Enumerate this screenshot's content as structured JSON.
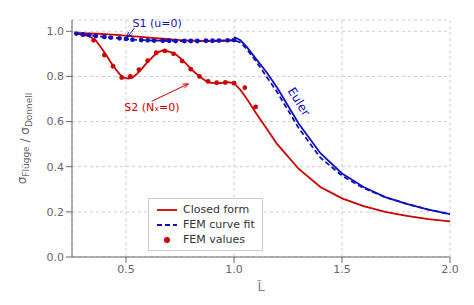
{
  "chart_data": {
    "type": "line",
    "x_label": "L̃",
    "y_label": "σFlügge / σDonnell",
    "xlim": [
      0.25,
      2.0
    ],
    "ylim": [
      0.0,
      1.05
    ],
    "xticks": [
      0.5,
      {
        "value": 1.0,
        "label": "1.0"
      },
      1.5,
      {
        "value": 2.0,
        "label": "2.0"
      }
    ],
    "yticks": [
      {
        "value": 0.0,
        "label": "0.0"
      },
      0.2,
      0.4,
      0.6,
      0.8,
      {
        "value": 1.0,
        "label": "1.0"
      }
    ],
    "grid": true,
    "legend": "lower left",
    "series": [
      {
        "name": "Closed form",
        "color": "#cc0000",
        "line_style": "solid",
        "x": [
          0.27,
          0.32,
          0.37,
          0.42,
          0.47,
          0.52,
          0.57,
          0.62,
          0.67,
          0.72,
          0.77,
          0.82,
          0.87,
          0.92,
          0.97,
          1.0
        ],
        "values": [
          0.993,
          0.991,
          0.989,
          0.986,
          0.983,
          0.979,
          0.975,
          0.971,
          0.967,
          0.963,
          0.96,
          0.958,
          0.957,
          0.957,
          0.958,
          0.96
        ]
      },
      {
        "name": "Closed form",
        "color": "#cc0000",
        "line_style": "solid",
        "x": [
          0.27,
          0.3,
          0.33,
          0.36,
          0.39,
          0.41,
          0.43,
          0.45,
          0.47,
          0.49,
          0.51,
          0.53,
          0.55,
          0.57,
          0.59,
          0.61,
          0.63,
          0.65,
          0.67,
          0.69,
          0.71,
          0.73,
          0.75,
          0.77,
          0.79,
          0.81,
          0.83,
          0.85,
          0.87,
          0.89,
          0.91,
          0.93,
          0.95,
          0.97,
          1.0,
          1.03,
          1.06,
          1.1,
          1.15,
          1.2,
          1.3,
          1.4,
          1.5,
          1.6,
          1.7,
          1.8,
          1.9,
          2.0
        ],
        "values": [
          0.99,
          0.985,
          0.978,
          0.96,
          0.92,
          0.893,
          0.862,
          0.835,
          0.81,
          0.795,
          0.79,
          0.795,
          0.81,
          0.83,
          0.853,
          0.873,
          0.893,
          0.908,
          0.915,
          0.912,
          0.907,
          0.898,
          0.882,
          0.864,
          0.845,
          0.825,
          0.808,
          0.793,
          0.78,
          0.773,
          0.77,
          0.77,
          0.772,
          0.775,
          0.77,
          0.74,
          0.7,
          0.64,
          0.57,
          0.5,
          0.39,
          0.31,
          0.26,
          0.225,
          0.2,
          0.182,
          0.168,
          0.158
        ]
      },
      {
        "name": "FEM values",
        "color": "#cc0000",
        "marker": "circle",
        "x": [
          0.3,
          0.35,
          0.4,
          0.44,
          0.48,
          0.52,
          0.56,
          0.6,
          0.64,
          0.68,
          0.72,
          0.76,
          0.8,
          0.84,
          0.88,
          0.92,
          0.96,
          1.0,
          1.05,
          1.1
        ],
        "values": [
          0.985,
          0.96,
          0.895,
          0.845,
          0.795,
          0.8,
          0.83,
          0.87,
          0.905,
          0.913,
          0.9,
          0.868,
          0.832,
          0.8,
          0.778,
          0.772,
          0.773,
          0.77,
          0.75,
          0.665
        ]
      },
      {
        "name": "FEM values",
        "color": "#1111bb",
        "marker": "circle",
        "x": [
          0.27,
          0.3,
          0.33,
          0.36,
          0.4,
          0.43,
          0.47,
          0.5,
          0.53,
          0.57,
          0.6,
          0.63,
          0.67,
          0.7,
          0.73,
          0.77,
          0.8,
          0.83,
          0.87,
          0.9,
          0.93,
          0.97,
          1.0
        ],
        "values": [
          0.99,
          0.986,
          0.983,
          0.979,
          0.975,
          0.972,
          0.969,
          0.966,
          0.963,
          0.961,
          0.96,
          0.959,
          0.958,
          0.958,
          0.957,
          0.957,
          0.957,
          0.957,
          0.958,
          0.958,
          0.959,
          0.96,
          0.961
        ]
      },
      {
        "name": "FEM curve fit",
        "color": "#1111bb",
        "line_style": "dashed",
        "x": [
          0.27,
          0.3,
          0.33,
          0.36,
          0.4,
          0.43,
          0.47,
          0.5,
          0.53,
          0.57,
          0.6,
          0.63,
          0.67,
          0.7,
          0.73,
          0.77,
          0.8,
          0.83,
          0.87,
          0.9,
          0.93,
          0.97,
          1.0,
          1.03,
          1.06,
          1.1,
          1.15,
          1.2,
          1.3,
          1.4,
          1.5,
          1.6,
          1.7,
          1.8,
          1.9,
          2.0
        ],
        "values": [
          0.99,
          0.986,
          0.983,
          0.979,
          0.975,
          0.972,
          0.969,
          0.966,
          0.963,
          0.961,
          0.96,
          0.959,
          0.958,
          0.958,
          0.957,
          0.957,
          0.957,
          0.957,
          0.958,
          0.958,
          0.959,
          0.96,
          0.961,
          0.95,
          0.92,
          0.87,
          0.8,
          0.73,
          0.57,
          0.44,
          0.36,
          0.305,
          0.265,
          0.235,
          0.21,
          0.19
        ]
      },
      {
        "color": "#1111bb",
        "line_style": "solid",
        "x": [
          1.0,
          1.03,
          1.06,
          1.1,
          1.15,
          1.2,
          1.3,
          1.4,
          1.5,
          1.6,
          1.7,
          1.8,
          1.9,
          2.0
        ],
        "values": [
          0.975,
          0.96,
          0.93,
          0.88,
          0.82,
          0.75,
          0.59,
          0.46,
          0.37,
          0.31,
          0.265,
          0.235,
          0.21,
          0.19
        ]
      }
    ],
    "annotations": [
      {
        "text": "S1 (u=0)",
        "x": 0.5,
        "y": 0.966,
        "text_x": 0.53,
        "text_y": 1.01,
        "color": "#1111bb"
      },
      {
        "text": "S2 (Nₓ=0)",
        "x": 0.795,
        "y": 0.77,
        "text_x": 0.62,
        "text_y": 0.695,
        "color": "#cc0000"
      },
      {
        "text": "Euler",
        "text_x": 1.26,
        "text_y": 0.745,
        "color": "#1111bb"
      }
    ]
  }
}
